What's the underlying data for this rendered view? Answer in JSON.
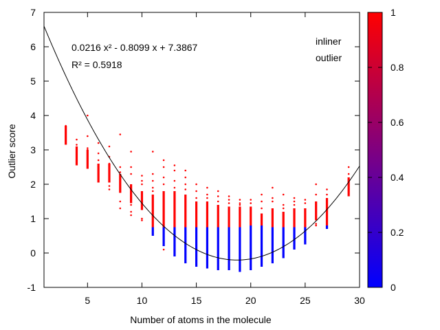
{
  "chart_data": {
    "type": "scatter",
    "xlabel": "Number of atoms in the molecule",
    "ylabel": "Outlier score",
    "xlim": [
      1,
      30
    ],
    "ylim": [
      -1,
      7
    ],
    "xticks": [
      5,
      10,
      15,
      20,
      25,
      30
    ],
    "yticks": [
      -1,
      0,
      1,
      2,
      3,
      4,
      5,
      6,
      7
    ],
    "equation_text": "0.0216 x² - 0.8099 x + 7.3867",
    "r2_text": "R² = 0.5918",
    "fit": {
      "a": 0.0216,
      "b": -0.8099,
      "c": 7.3867
    },
    "legend": [
      {
        "label": "inliner",
        "color": "#0000ff"
      },
      {
        "label": "outlier",
        "color": "#ff0000"
      }
    ],
    "colorbar": {
      "min": 0,
      "max": 1,
      "ticks": [
        "0",
        "0.2",
        "0.4",
        "0.6",
        "0.8",
        "1"
      ],
      "color_low": "#0000ff",
      "color_high": "#ff0000"
    },
    "columns": [
      {
        "x": 3,
        "inlier_min": null,
        "split": null,
        "dense_max": 3.7,
        "max": 3.7,
        "sparse": [
          3.7,
          3.5
        ]
      },
      {
        "x": 4,
        "inlier_min": null,
        "split": null,
        "dense_max": 3.1,
        "max": 3.3,
        "sparse": [
          3.3,
          3.15,
          3.05
        ]
      },
      {
        "x": 5,
        "inlier_min": null,
        "split": null,
        "dense_max": 3.0,
        "max": 4.0,
        "sparse": [
          4.0,
          3.4,
          3.05,
          3.0,
          2.75
        ]
      },
      {
        "x": 6,
        "inlier_min": null,
        "split": null,
        "dense_max": 2.6,
        "max": 3.2,
        "sparse": [
          3.2,
          2.9,
          2.7,
          2.5,
          2.4,
          2.3
        ]
      },
      {
        "x": 7,
        "inlier_min": null,
        "split": null,
        "dense_max": 2.6,
        "max": 3.1,
        "sparse": [
          3.1,
          2.8,
          2.6,
          2.45,
          2.2,
          1.95,
          1.85
        ]
      },
      {
        "x": 8,
        "inlier_min": null,
        "split": null,
        "dense_max": 2.3,
        "max": 3.5,
        "sparse": [
          3.45,
          2.5,
          2.35,
          1.8,
          1.5,
          1.3
        ]
      },
      {
        "x": 9,
        "inlier_min": null,
        "split": null,
        "dense_max": 2.0,
        "max": 3.0,
        "sparse": [
          2.95,
          2.5,
          2.3,
          1.4,
          1.2,
          1.1
        ]
      },
      {
        "x": 10,
        "inlier_min": null,
        "split": null,
        "dense_max": 1.8,
        "max": 2.3,
        "sparse": [
          2.25,
          2.1,
          2.0,
          1.0,
          0.95
        ]
      },
      {
        "x": 11,
        "inlier_min": 0.5,
        "split": 0.75,
        "dense_max": 1.7,
        "max": 2.95,
        "sparse": [
          2.95,
          2.3,
          2.1,
          1.9,
          1.8
        ]
      },
      {
        "x": 12,
        "inlier_min": 0.2,
        "split": 0.75,
        "dense_max": 1.8,
        "max": 2.7,
        "sparse": [
          2.7,
          2.5,
          2.2,
          2.0,
          0.1
        ]
      },
      {
        "x": 13,
        "inlier_min": -0.1,
        "split": 0.75,
        "dense_max": 1.8,
        "max": 2.55,
        "sparse": [
          2.55,
          2.4,
          2.1,
          1.9
        ]
      },
      {
        "x": 14,
        "inlier_min": -0.3,
        "split": 0.75,
        "dense_max": 1.7,
        "max": 2.4,
        "sparse": [
          2.4,
          2.2,
          2.0,
          1.85
        ]
      },
      {
        "x": 15,
        "inlier_min": -0.4,
        "split": 0.75,
        "dense_max": 1.5,
        "max": 2.0,
        "sparse": [
          2.0,
          1.8,
          1.6
        ]
      },
      {
        "x": 16,
        "inlier_min": -0.45,
        "split": 0.75,
        "dense_max": 1.5,
        "max": 1.9,
        "sparse": [
          1.9,
          1.7,
          1.6
        ]
      },
      {
        "x": 17,
        "inlier_min": -0.5,
        "split": 0.75,
        "dense_max": 1.4,
        "max": 1.8,
        "sparse": [
          1.8,
          1.65,
          1.5
        ]
      },
      {
        "x": 18,
        "inlier_min": -0.5,
        "split": 0.75,
        "dense_max": 1.35,
        "max": 1.65,
        "sparse": [
          1.65,
          1.55,
          1.45
        ]
      },
      {
        "x": 19,
        "inlier_min": -0.55,
        "split": 0.75,
        "dense_max": 1.35,
        "max": 1.6,
        "sparse": [
          1.55,
          1.45,
          1.4
        ]
      },
      {
        "x": 20,
        "inlier_min": -0.5,
        "split": 0.8,
        "dense_max": 1.35,
        "max": 1.55,
        "sparse": [
          1.55,
          1.45
        ]
      },
      {
        "x": 21,
        "inlier_min": -0.4,
        "split": 0.8,
        "dense_max": 1.15,
        "max": 1.7,
        "sparse": [
          1.7,
          1.5,
          1.3
        ]
      },
      {
        "x": 22,
        "inlier_min": -0.3,
        "split": 0.75,
        "dense_max": 1.3,
        "max": 1.9,
        "sparse": [
          1.9,
          1.6,
          1.5
        ]
      },
      {
        "x": 23,
        "inlier_min": -0.15,
        "split": 0.75,
        "dense_max": 1.2,
        "max": 1.7,
        "sparse": [
          1.7,
          1.4,
          1.3
        ]
      },
      {
        "x": 24,
        "inlier_min": 0.1,
        "split": 0.75,
        "dense_max": 1.3,
        "max": 1.6,
        "sparse": [
          1.6,
          1.5,
          1.4
        ]
      },
      {
        "x": 25,
        "inlier_min": 0.25,
        "split": 0.75,
        "dense_max": 1.3,
        "max": 1.55,
        "sparse": [
          1.55,
          1.45
        ]
      },
      {
        "x": 26,
        "inlier_min": null,
        "split": null,
        "dense_max": 1.5,
        "max": 2.0,
        "sparse": [
          2.0,
          1.7,
          0.85,
          0.8
        ]
      },
      {
        "x": 27,
        "inlier_min": 0.7,
        "split": 0.8,
        "dense_max": 1.6,
        "max": 1.85,
        "sparse": [
          1.85,
          1.7
        ]
      },
      {
        "x": 29,
        "inlier_min": null,
        "split": null,
        "dense_max": 2.2,
        "max": 2.5,
        "sparse": [
          2.5,
          2.3,
          1.8
        ]
      }
    ]
  }
}
